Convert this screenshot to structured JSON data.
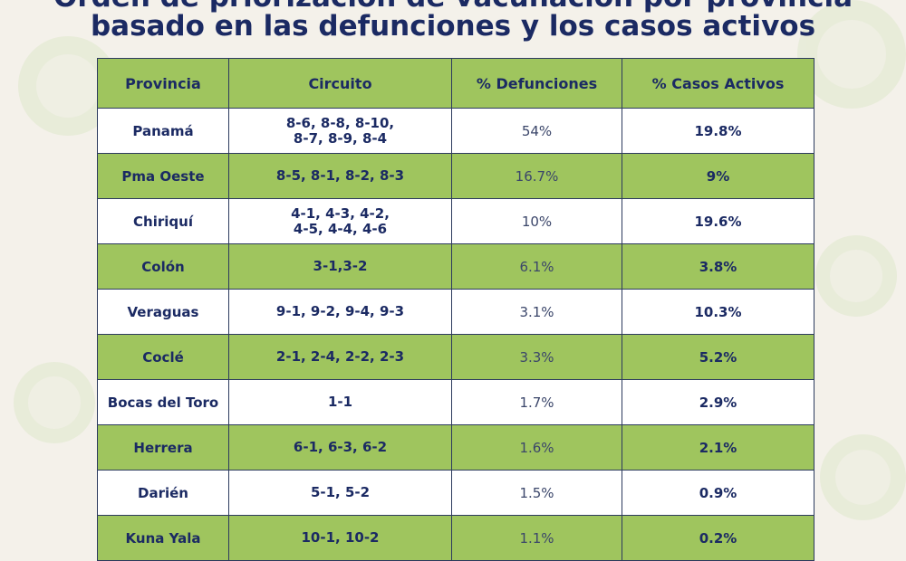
{
  "title": {
    "line1": "Orden de priorización de vacunación por provincia",
    "line2": "basado en las defunciones y los casos activos"
  },
  "table": {
    "headers": [
      "Provincia",
      "Circuito",
      "% Defunciones",
      "% Casos Activos"
    ],
    "rows": [
      {
        "provincia": "Panamá",
        "circuito": [
          "8-6, 8-8, 8-10,",
          "8-7, 8-9, 8-4"
        ],
        "defunciones": "54%",
        "casos_activos": "19.8%"
      },
      {
        "provincia": "Pma Oeste",
        "circuito": [
          "8-5, 8-1, 8-2, 8-3"
        ],
        "defunciones": "16.7%",
        "casos_activos": "9%"
      },
      {
        "provincia": "Chiriquí",
        "circuito": [
          "4-1, 4-3, 4-2,",
          "4-5, 4-4, 4-6"
        ],
        "defunciones": "10%",
        "casos_activos": "19.6%"
      },
      {
        "provincia": "Colón",
        "circuito": [
          "3-1,3-2"
        ],
        "defunciones": "6.1%",
        "casos_activos": "3.8%"
      },
      {
        "provincia": "Veraguas",
        "circuito": [
          "9-1, 9-2, 9-4, 9-3"
        ],
        "defunciones": "3.1%",
        "casos_activos": "10.3%"
      },
      {
        "provincia": "Coclé",
        "circuito": [
          "2-1, 2-4, 2-2, 2-3"
        ],
        "defunciones": "3.3%",
        "casos_activos": "5.2%"
      },
      {
        "provincia": "Bocas del Toro",
        "circuito": [
          "1-1"
        ],
        "defunciones": "1.7%",
        "casos_activos": "2.9%"
      },
      {
        "provincia": "Herrera",
        "circuito": [
          "6-1, 6-3, 6-2"
        ],
        "defunciones": "1.6%",
        "casos_activos": "2.1%"
      },
      {
        "provincia": "Darién",
        "circuito": [
          "5-1, 5-2"
        ],
        "defunciones": "1.5%",
        "casos_activos": "0.9%"
      },
      {
        "provincia": "Kuna Yala",
        "circuito": [
          "10-1, 10-2"
        ],
        "defunciones": "1.1%",
        "casos_activos": "0.2%"
      }
    ]
  },
  "colors": {
    "background": "#f4f1ea",
    "green_row": "#9fc55e",
    "white_row": "#ffffff",
    "text": "#1b2a63",
    "border": "#2c3a5e"
  }
}
